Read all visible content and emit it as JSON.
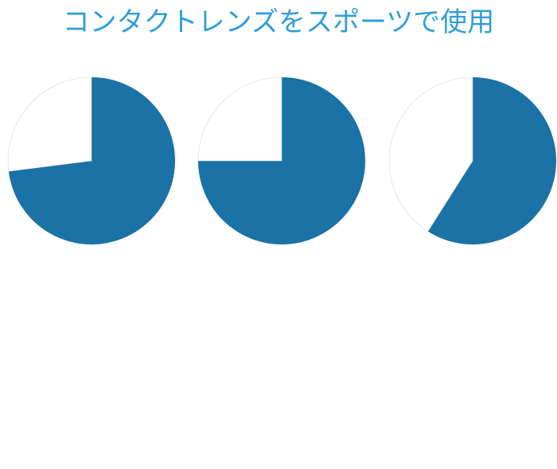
{
  "title": "コンタクトレンズをスポーツで使用",
  "colors": {
    "title": "#2e9fd8",
    "slice_primary": "#1a72a6",
    "slice_remainder": "#ffffff",
    "slice_outline": "#d8d8d8"
  },
  "chart_data": [
    {
      "type": "pie",
      "title": "",
      "slices": [
        {
          "label": "",
          "value": 73
        },
        {
          "label": "",
          "value": 27
        }
      ]
    },
    {
      "type": "pie",
      "title": "",
      "slices": [
        {
          "label": "",
          "value": 75
        },
        {
          "label": "",
          "value": 25
        }
      ]
    },
    {
      "type": "pie",
      "title": "",
      "slices": [
        {
          "label": "",
          "value": 59
        },
        {
          "label": "",
          "value": 41
        }
      ]
    }
  ]
}
